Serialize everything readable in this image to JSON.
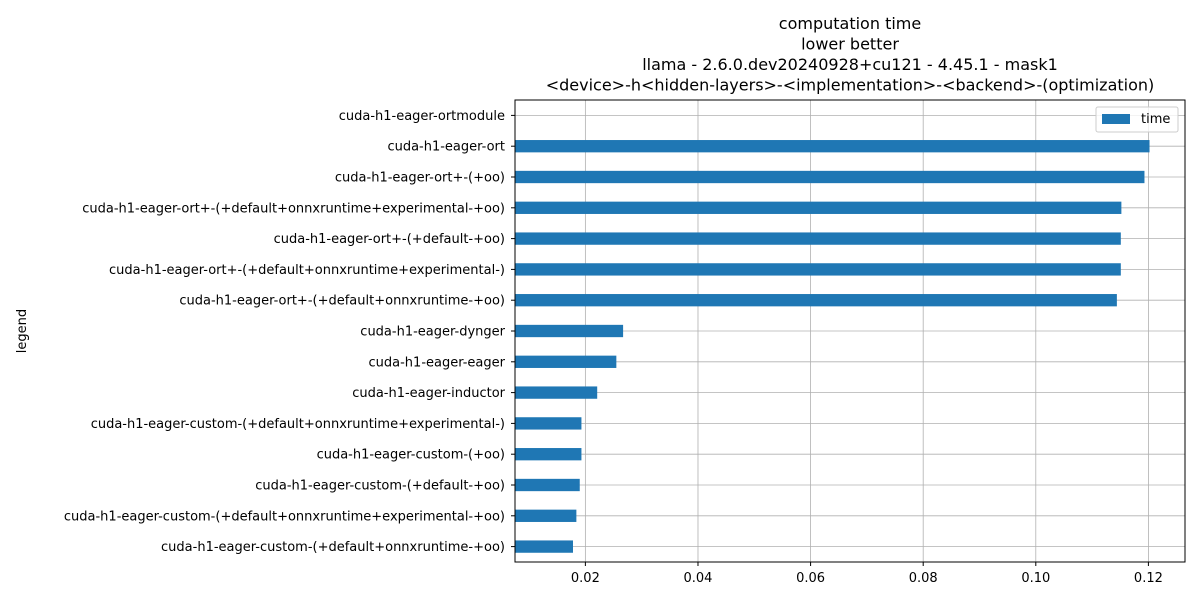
{
  "chart_data": {
    "type": "bar",
    "orientation": "horizontal",
    "title_lines": [
      "computation time",
      "lower better",
      "llama - 2.6.0.dev20240928+cu121 - 4.45.1 - mask1",
      "<device>-h<hidden-layers>-<implementation>-<backend>-(optimization)"
    ],
    "ylabel": "legend",
    "xlabel": "",
    "xlim": [
      0.0075,
      0.1265
    ],
    "xticks": [
      0.02,
      0.04,
      0.06,
      0.08,
      0.1,
      0.12
    ],
    "xtick_labels": [
      "0.02",
      "0.04",
      "0.06",
      "0.08",
      "0.10",
      "0.12"
    ],
    "grid": true,
    "legend_position": "top-right",
    "categories": [
      "cuda-h1-eager-ortmodule",
      "cuda-h1-eager-ort",
      "cuda-h1-eager-ort+-(+oo)",
      "cuda-h1-eager-ort+-(+default+onnxruntime+experimental-+oo)",
      "cuda-h1-eager-ort+-(+default-+oo)",
      "cuda-h1-eager-ort+-(+default+onnxruntime+experimental-)",
      "cuda-h1-eager-ort+-(+default+onnxruntime-+oo)",
      "cuda-h1-eager-dynger",
      "cuda-h1-eager-eager",
      "cuda-h1-eager-inductor",
      "cuda-h1-eager-custom-(+default+onnxruntime+experimental-)",
      "cuda-h1-eager-custom-(+oo)",
      "cuda-h1-eager-custom-(+default-+oo)",
      "cuda-h1-eager-custom-(+default+onnxruntime+experimental-+oo)",
      "cuda-h1-eager-custom-(+default+onnxruntime-+oo)"
    ],
    "series": [
      {
        "name": "time",
        "color": "#1f77b4",
        "values": [
          null,
          0.1202,
          0.1193,
          0.1152,
          0.1151,
          0.1151,
          0.1144,
          0.0267,
          0.0255,
          0.0221,
          0.0193,
          0.0193,
          0.019,
          0.0184,
          0.0178
        ]
      }
    ]
  }
}
